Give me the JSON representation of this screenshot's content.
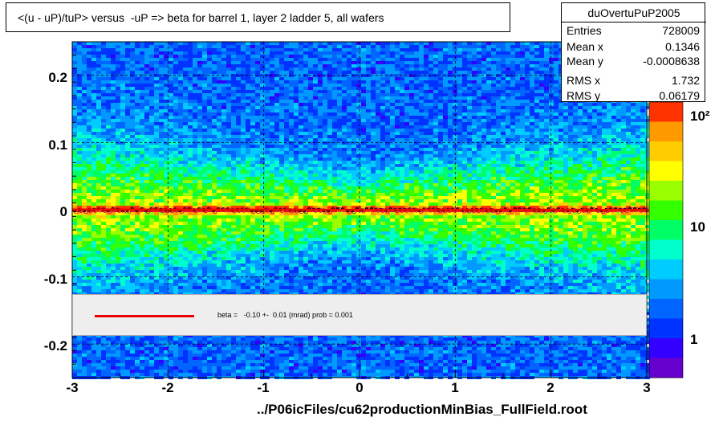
{
  "title": "<(u - uP)/tuP> versus  -uP => beta for barrel 1, layer 2 ladder 5, all wafers",
  "stats": {
    "name": "duOvertuPuP2005",
    "rows": [
      {
        "label": "Entries",
        "value": "728009"
      },
      {
        "label": "Mean x",
        "value": "0.1346"
      },
      {
        "label": "Mean y",
        "value": "-0.0008638"
      },
      {
        "label": "RMS x",
        "value": "1.732"
      },
      {
        "label": "RMS y",
        "value": "0.06179"
      }
    ]
  },
  "fit_text": "beta =   -0.10 +-  0.01 (mrad) prob = 0.001",
  "x_axis_title": "../P06icFiles/cu62productionMinBias_FullField.root",
  "colors": {
    "fit_line": "#ee0000",
    "frame": "#000000",
    "fit_box": "#eeeeee"
  },
  "chart_data": {
    "type": "heatmap",
    "title": "<(u - uP)/tuP> versus  -uP => beta for barrel 1, layer 2 ladder 5, all wafers",
    "xlabel": "../P06icFiles/cu62productionMinBias_FullField.root",
    "ylabel": "",
    "xlim": [
      -3,
      3
    ],
    "ylim": [
      -0.25,
      0.25
    ],
    "x_ticks": [
      "-3",
      "-2",
      "-1",
      "0",
      "1",
      "2",
      "3"
    ],
    "y_ticks": [
      "-0.2",
      "-0.1",
      "0",
      "0.1",
      "0.2"
    ],
    "z_ticks": [
      "1",
      "10",
      "10²"
    ],
    "z_scale": "log",
    "grid": true,
    "fit": {
      "beta_mrad": -0.1,
      "error_mrad": 0.01,
      "prob": 0.001
    },
    "profile_mean_y": 0.0,
    "stats": {
      "entries": 728009,
      "mean_x": 0.1346,
      "mean_y": -0.0008638,
      "rms_x": 1.732,
      "rms_y": 0.06179
    }
  }
}
